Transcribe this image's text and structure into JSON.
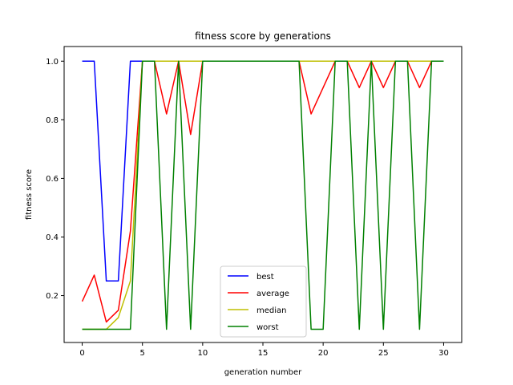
{
  "chart_data": {
    "type": "line",
    "title": "fitness score by generations",
    "xlabel": "generation number",
    "ylabel": "fitness score",
    "xlim": [
      -1.5,
      31.5
    ],
    "ylim": [
      0.04,
      1.05
    ],
    "xticks": [
      0,
      5,
      10,
      15,
      20,
      25,
      30
    ],
    "yticks": [
      0.2,
      0.4,
      0.6,
      0.8,
      1.0
    ],
    "legend_position": "bottom-center",
    "x": [
      0,
      1,
      2,
      3,
      4,
      5,
      6,
      7,
      8,
      9,
      10,
      11,
      12,
      13,
      14,
      15,
      16,
      17,
      18,
      19,
      20,
      21,
      22,
      23,
      24,
      25,
      26,
      27,
      28,
      29,
      30
    ],
    "series": [
      {
        "name": "best",
        "color": "#0000ff",
        "values": [
          1.0,
          1.0,
          0.25,
          0.25,
          1.0,
          1.0,
          1.0,
          1.0,
          1.0,
          1.0,
          1.0,
          1.0,
          1.0,
          1.0,
          1.0,
          1.0,
          1.0,
          1.0,
          1.0,
          1.0,
          1.0,
          1.0,
          1.0,
          1.0,
          1.0,
          1.0,
          1.0,
          1.0,
          1.0,
          1.0,
          1.0
        ]
      },
      {
        "name": "average",
        "color": "#ff0000",
        "values": [
          0.18,
          0.27,
          0.11,
          0.15,
          0.42,
          1.0,
          1.0,
          0.82,
          1.0,
          0.75,
          1.0,
          1.0,
          1.0,
          1.0,
          1.0,
          1.0,
          1.0,
          1.0,
          1.0,
          0.82,
          0.91,
          1.0,
          1.0,
          0.91,
          1.0,
          0.91,
          1.0,
          1.0,
          0.91,
          1.0,
          1.0
        ]
      },
      {
        "name": "median",
        "color": "#bfbf00",
        "values": [
          0.085,
          0.085,
          0.085,
          0.125,
          0.25,
          1.0,
          1.0,
          1.0,
          1.0,
          1.0,
          1.0,
          1.0,
          1.0,
          1.0,
          1.0,
          1.0,
          1.0,
          1.0,
          1.0,
          1.0,
          1.0,
          1.0,
          1.0,
          1.0,
          1.0,
          1.0,
          1.0,
          1.0,
          1.0,
          1.0,
          1.0
        ]
      },
      {
        "name": "worst",
        "color": "#008000",
        "values": [
          0.085,
          0.085,
          0.085,
          0.085,
          0.085,
          1.0,
          1.0,
          0.085,
          1.0,
          0.085,
          1.0,
          1.0,
          1.0,
          1.0,
          1.0,
          1.0,
          1.0,
          1.0,
          1.0,
          0.085,
          0.085,
          1.0,
          1.0,
          0.085,
          1.0,
          0.085,
          1.0,
          1.0,
          0.085,
          1.0,
          1.0
        ]
      }
    ]
  }
}
